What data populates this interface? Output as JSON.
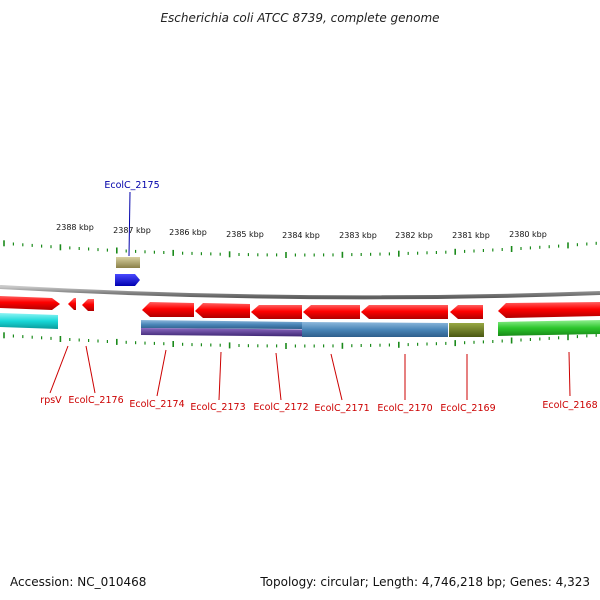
{
  "title": "Escherichia coli ATCC 8739, complete genome",
  "footer": {
    "accession": "Accession: NC_010468",
    "summary": "Topology: circular; Length: 4,746,218 bp; Genes: 4,323"
  },
  "scale_labels": [
    "2388 kbp",
    "2387 kbp",
    "2386 kbp",
    "2385 kbp",
    "2384 kbp",
    "2383 kbp",
    "2382 kbp",
    "2381 kbp",
    "2380 kbp"
  ],
  "colors": {
    "backbone": "#8a8a8a",
    "cds": "#ff0000",
    "tick": "#1a8a1a",
    "label_red": "#cc0000",
    "label_blue": "#0000aa",
    "cyan_track": "#18d8d8",
    "steel_track": "#4a86b8",
    "purple_track": "#5a3a90",
    "olive_track": "#6b7a1e",
    "green_track": "#2cc52c",
    "khaki_feature": "#b0a868",
    "blue_feature": "#0000ee"
  },
  "genes": [
    {
      "name": "rpsV",
      "color": "label_red"
    },
    {
      "name": "EcolC_2176",
      "color": "label_red"
    },
    {
      "name": "EcolC_2174",
      "color": "label_red"
    },
    {
      "name": "EcolC_2173",
      "color": "label_red"
    },
    {
      "name": "EcolC_2172",
      "color": "label_red"
    },
    {
      "name": "EcolC_2171",
      "color": "label_red"
    },
    {
      "name": "EcolC_2170",
      "color": "label_red"
    },
    {
      "name": "EcolC_2169",
      "color": "label_red"
    },
    {
      "name": "EcolC_2168",
      "color": "label_red"
    },
    {
      "name": "EcolC_2175",
      "color": "label_blue"
    }
  ]
}
